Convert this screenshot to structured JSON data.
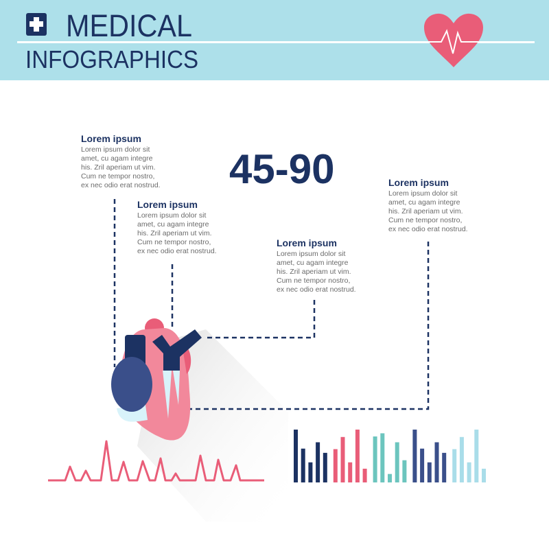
{
  "header": {
    "title_line1": "MEDICAL",
    "title_line2": "INFOGRAPHICS",
    "icons": [
      "medical-cross-icon",
      "heart-pulse-icon"
    ]
  },
  "highlight_value": "45-90",
  "text_blocks": [
    {
      "title": "Lorem ipsum",
      "lines": [
        "Lorem ipsum dolor sit",
        "amet, cu agam integre",
        "his. Zril aperiam ut vim.",
        "Cum ne tempor nostro,",
        "ex nec odio erat nostrud."
      ]
    },
    {
      "title": "Lorem ipsum",
      "lines": [
        "Lorem ipsum dolor sit",
        "amet, cu agam integre",
        "his. Zril aperiam ut vim.",
        "Cum ne tempor nostro,",
        "ex nec odio erat nostrud."
      ]
    },
    {
      "title": "Lorem ipsum",
      "lines": [
        "Lorem ipsum dolor sit",
        "amet, cu agam integre",
        "his. Zril aperiam ut vim.",
        "Cum ne tempor nostro,",
        "ex nec odio erat nostrud."
      ]
    },
    {
      "title": "Lorem ipsum",
      "lines": [
        "Lorem ipsum dolor sit",
        "amet, cu agam integre",
        "his. Zril aperiam ut vim.",
        "Cum ne tempor nostro,",
        "ex nec odio erat nostrud."
      ]
    }
  ],
  "colors": {
    "navy": "#1c3262",
    "pink": "#e95d78",
    "teal": "#6cc5be",
    "blue": "#3a4f8a",
    "lightblue": "#a9dde9",
    "header_bg": "#ade0ea"
  },
  "chart_data": {
    "type": "bar",
    "series": [
      {
        "color": "#1c3262",
        "values": [
          1.0,
          0.64,
          0.38,
          0.76,
          0.56
        ]
      },
      {
        "color": "#e95d78",
        "values": [
          0.63,
          0.86,
          0.38,
          1.0,
          0.26
        ]
      },
      {
        "color": "#6cc5be",
        "values": [
          0.87,
          0.93,
          0.16,
          0.76,
          0.42
        ]
      },
      {
        "color": "#3a4f8a",
        "values": [
          1.0,
          0.64,
          0.38,
          0.76,
          0.56
        ]
      },
      {
        "color": "#a9dde9",
        "values": [
          0.63,
          0.86,
          0.38,
          1.0,
          0.26
        ]
      }
    ],
    "ylim": [
      0,
      1
    ]
  }
}
